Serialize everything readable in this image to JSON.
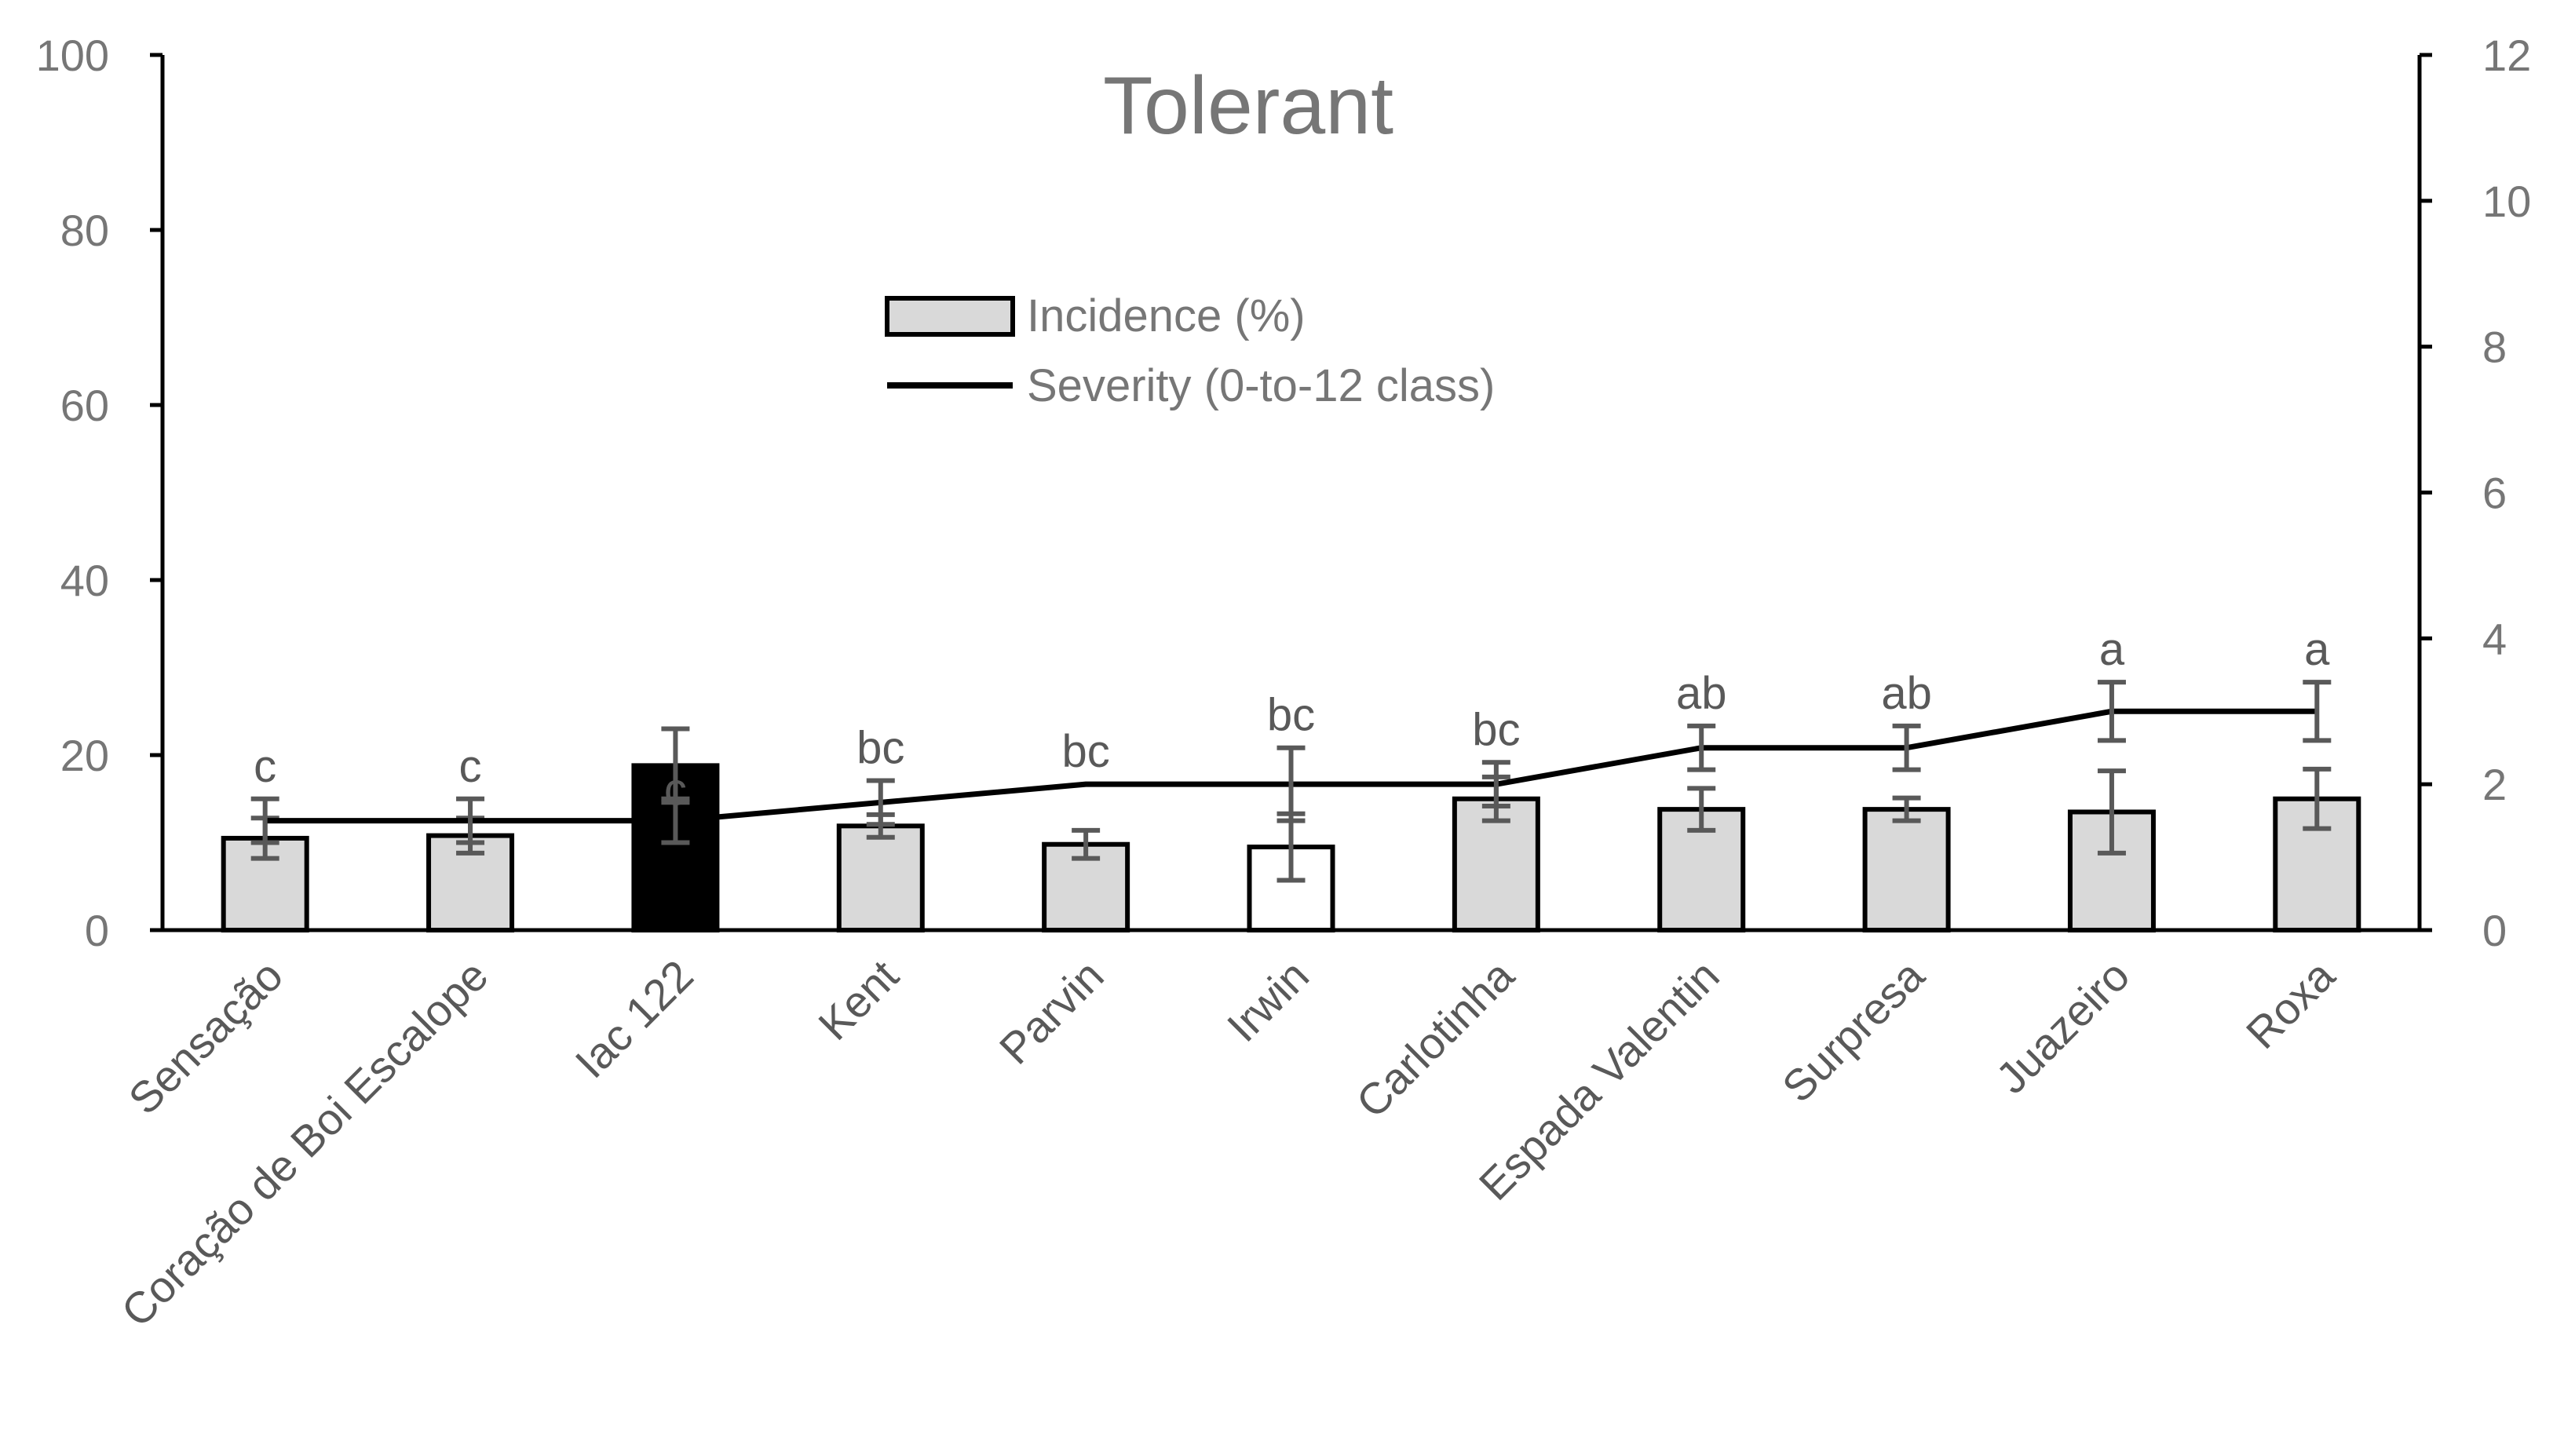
{
  "chart_data": {
    "type": "bar",
    "title": "Tolerant",
    "categories": [
      "Sensação",
      "Coração de Boi Escalope",
      "Iac 122",
      "Kent",
      "Parvin",
      "Irwin",
      "Carlotinha",
      "Espada Valentin",
      "Surpresa",
      "Juazeiro",
      "Roxa"
    ],
    "y_left": {
      "min": 0,
      "max": 100,
      "ticks": [
        "0",
        "20",
        "40",
        "60",
        "80",
        "100"
      ]
    },
    "y_right": {
      "min": 0,
      "max": 12,
      "ticks": [
        "0",
        "2",
        "4",
        "6",
        "8",
        "10",
        "12"
      ]
    },
    "series": [
      {
        "name": "Incidence (%)",
        "kind": "bar",
        "axis": "left",
        "values": [
          10.5,
          10.8,
          18.8,
          11.9,
          9.8,
          9.5,
          15,
          13.8,
          13.8,
          13.5,
          15
        ],
        "errors": [
          2.3,
          2.0,
          4.2,
          1.3,
          1.6,
          3.8,
          2.5,
          2.4,
          1.3,
          4.7,
          3.4
        ],
        "fills": [
          "#d9d9d9",
          "#d9d9d9",
          "#000000",
          "#d9d9d9",
          "#d9d9d9",
          "#ffffff",
          "#d9d9d9",
          "#d9d9d9",
          "#d9d9d9",
          "#d9d9d9",
          "#d9d9d9"
        ]
      },
      {
        "name": "Severity (0-to-12 class)",
        "kind": "line",
        "axis": "right",
        "values": [
          1.5,
          1.5,
          1.5,
          1.75,
          2,
          2,
          2,
          2.5,
          2.5,
          3,
          3
        ],
        "errors": [
          0.3,
          0.3,
          0.3,
          0.3,
          0,
          0.5,
          0.3,
          0.3,
          0.3,
          0.4,
          0.4
        ]
      }
    ],
    "significance_labels": [
      "c",
      "c",
      "c",
      "bc",
      "bc",
      "bc",
      "bc",
      "ab",
      "ab",
      "a",
      "a"
    ],
    "legend_position": "upper-center"
  },
  "colors": {
    "bar_default": "#d9d9d9",
    "bar_edge": "#000000",
    "line": "#000000",
    "error_bar": "#595959",
    "tick_text": "#767676",
    "category_text": "#595959",
    "axis": "#000000"
  }
}
